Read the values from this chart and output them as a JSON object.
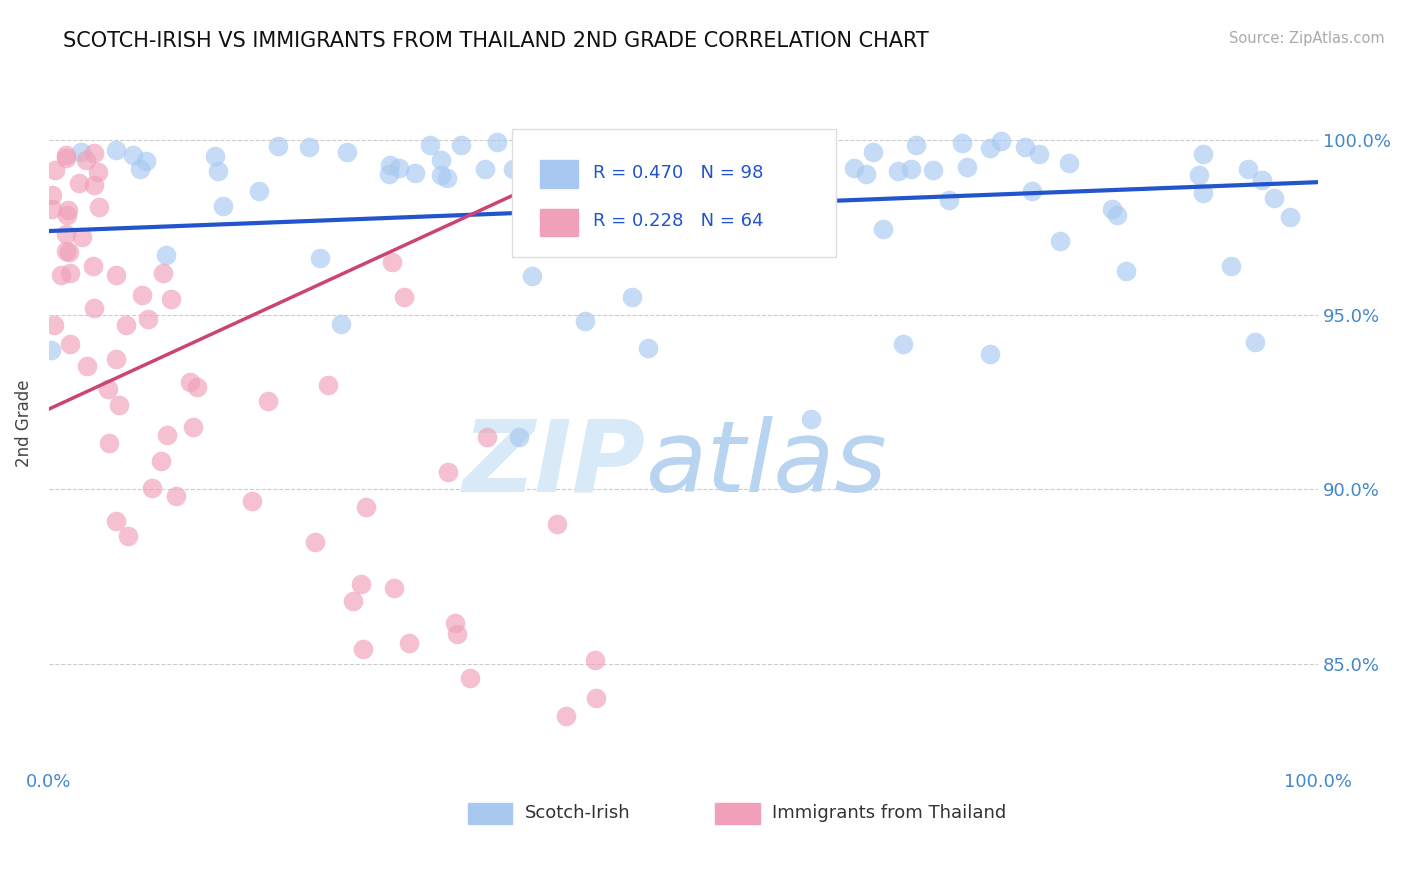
{
  "title": "SCOTCH-IRISH VS IMMIGRANTS FROM THAILAND 2ND GRADE CORRELATION CHART",
  "source_text": "Source: ZipAtlas.com",
  "ylabel": "2nd Grade",
  "yticks": [
    0.85,
    0.9,
    0.95,
    1.0
  ],
  "ytick_labels": [
    "85.0%",
    "90.0%",
    "95.0%",
    "100.0%"
  ],
  "blue_R": 0.47,
  "blue_N": 98,
  "pink_R": 0.228,
  "pink_N": 64,
  "blue_color": "#a8c8f0",
  "blue_line_color": "#2255cc",
  "pink_color": "#f0a0b8",
  "pink_line_color": "#cc4477",
  "legend_blue_label": "Scotch-Irish",
  "legend_pink_label": "Immigrants from Thailand",
  "watermark_zip": "ZIP",
  "watermark_atlas": "atlas",
  "background_color": "#ffffff",
  "grid_color": "#cccccc",
  "title_color": "#111111",
  "right_tick_color": "#4488cc",
  "x_label_color": "#4488cc",
  "ylim_min": 0.82,
  "ylim_max": 1.018,
  "xlim_min": 0.0,
  "xlim_max": 1.0
}
